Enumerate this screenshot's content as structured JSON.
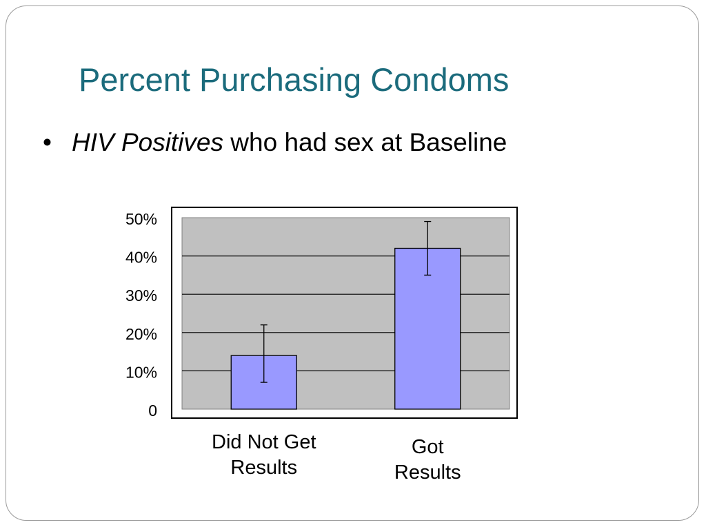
{
  "slide": {
    "title": "Percent Purchasing Condoms",
    "bullet": {
      "marker": "•",
      "italic_text": "HIV Positives",
      "text": " who had sex at Baseline"
    }
  },
  "colors": {
    "title": "#1b6b7c",
    "plot_bg": "#c0c0c0",
    "bar_fill": "#9999ff",
    "bar_stroke": "#000000"
  },
  "chart_data": {
    "type": "bar",
    "categories": [
      "Did Not Get Results",
      "Got Results"
    ],
    "category_lines": [
      [
        "Did Not Get",
        "Results"
      ],
      [
        "Got",
        "Results"
      ]
    ],
    "values": [
      14,
      42
    ],
    "error_bars": [
      [
        7,
        22
      ],
      [
        35,
        49
      ]
    ],
    "yticks": [
      "0",
      "10%",
      "20%",
      "30%",
      "40%",
      "50%"
    ],
    "ylim": [
      0,
      50
    ],
    "grid": true,
    "legend": false
  }
}
